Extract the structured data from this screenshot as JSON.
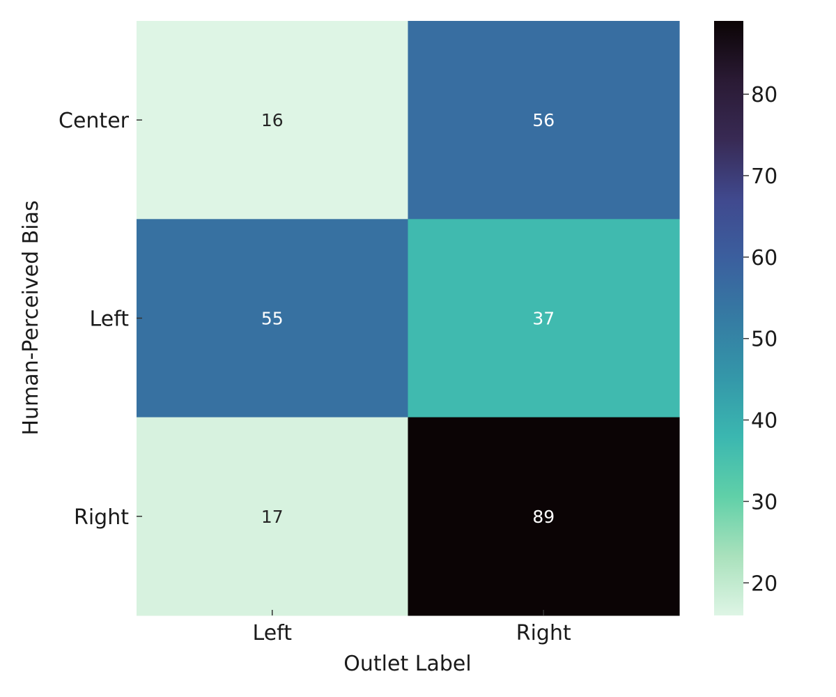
{
  "chart_data": {
    "type": "heatmap",
    "xlabel": "Outlet Label",
    "ylabel": "Human-Perceived Bias",
    "x_categories": [
      "Left",
      "Right"
    ],
    "y_categories": [
      "Center",
      "Left",
      "Right"
    ],
    "values": [
      [
        16,
        56
      ],
      [
        55,
        37
      ],
      [
        17,
        89
      ]
    ],
    "colorbar": {
      "colormap": "mako_r",
      "range": [
        16,
        89
      ],
      "ticks": [
        20,
        30,
        40,
        50,
        60,
        70,
        80
      ],
      "tick_labels": [
        "20",
        "30",
        "40",
        "50",
        "60",
        "70",
        "80"
      ]
    },
    "grid": false,
    "annotated": true
  }
}
